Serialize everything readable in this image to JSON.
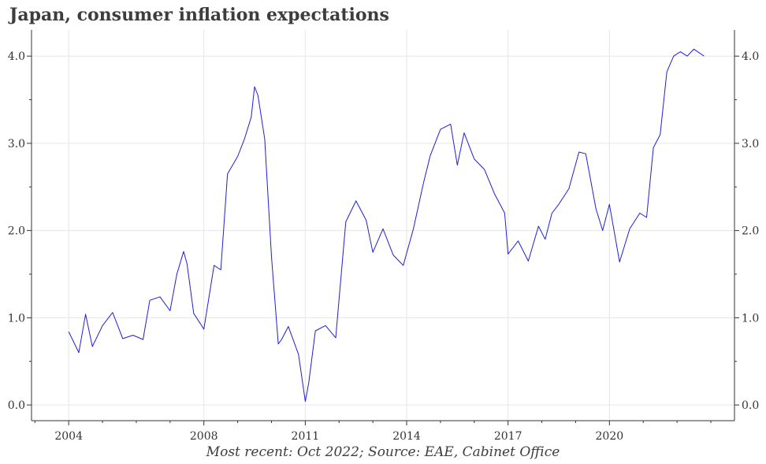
{
  "chart_data": {
    "type": "line",
    "title": "Japan, consumer inflation expectations",
    "caption": "Most recent: Oct 2022; Source: EAE, Cabinet Office",
    "xlabel": "",
    "ylabel": "",
    "x_ticks": [
      2004,
      2008,
      2011,
      2014,
      2017,
      2020
    ],
    "y_ticks": [
      0.0,
      1.0,
      2.0,
      3.0,
      4.0
    ],
    "y_tick_labels": [
      "0.0",
      "1.0",
      "2.0",
      "3.0",
      "4.0"
    ],
    "xlim": [
      2002.9,
      2023.7
    ],
    "ylim": [
      -0.18,
      4.3
    ],
    "grid": true,
    "y_axis_sides": "both",
    "colors": {
      "line": "#1f1fd6",
      "grid": "#e6e6e6",
      "axis": "#333333"
    },
    "series": [
      {
        "x": [
          2004.0,
          2004.3,
          2004.5,
          2004.7,
          2005.0,
          2005.3,
          2005.6,
          2005.9,
          2006.2,
          2006.4,
          2006.7,
          2007.0,
          2007.2,
          2007.4,
          2007.5,
          2007.7,
          2008.0,
          2008.3,
          2008.5,
          2008.7,
          2009.0,
          2009.2,
          2009.4,
          2009.5,
          2009.6,
          2009.8,
          2010.0,
          2010.2,
          2010.3,
          2010.5,
          2010.8,
          2011.0,
          2011.1,
          2011.3,
          2011.6,
          2011.9,
          2012.2,
          2012.5,
          2012.8,
          2013.0,
          2013.3,
          2013.6,
          2013.9,
          2014.2,
          2014.5,
          2014.7,
          2015.0,
          2015.3,
          2015.5,
          2015.7,
          2016.0,
          2016.3,
          2016.6,
          2016.9,
          2017.0,
          2017.3,
          2017.6,
          2017.9,
          2018.1,
          2018.3,
          2018.5,
          2018.8,
          2019.1,
          2019.3,
          2019.6,
          2019.8,
          2020.0,
          2020.3,
          2020.6,
          2020.9,
          2021.1,
          2021.3,
          2021.5,
          2021.7,
          2021.9,
          2022.1,
          2022.3,
          2022.5,
          2022.8
        ],
        "y": [
          0.84,
          0.6,
          1.04,
          0.67,
          0.91,
          1.06,
          0.76,
          0.8,
          0.75,
          1.2,
          1.24,
          1.08,
          1.5,
          1.76,
          1.62,
          1.05,
          0.87,
          1.6,
          1.55,
          2.65,
          2.85,
          3.05,
          3.3,
          3.65,
          3.55,
          3.05,
          1.7,
          0.7,
          0.75,
          0.9,
          0.58,
          0.04,
          0.25,
          0.85,
          0.91,
          0.77,
          2.1,
          2.34,
          2.12,
          1.75,
          2.02,
          1.72,
          1.6,
          2.02,
          2.55,
          2.86,
          3.16,
          3.22,
          2.75,
          3.12,
          2.82,
          2.7,
          2.42,
          2.2,
          1.73,
          1.88,
          1.65,
          2.05,
          1.9,
          2.2,
          2.3,
          2.48,
          2.9,
          2.88,
          2.25,
          2.0,
          2.3,
          1.64,
          2.02,
          2.2,
          2.15,
          2.95,
          3.1,
          3.82,
          4.0,
          4.05,
          4.0,
          4.08,
          4.0
        ]
      }
    ]
  }
}
